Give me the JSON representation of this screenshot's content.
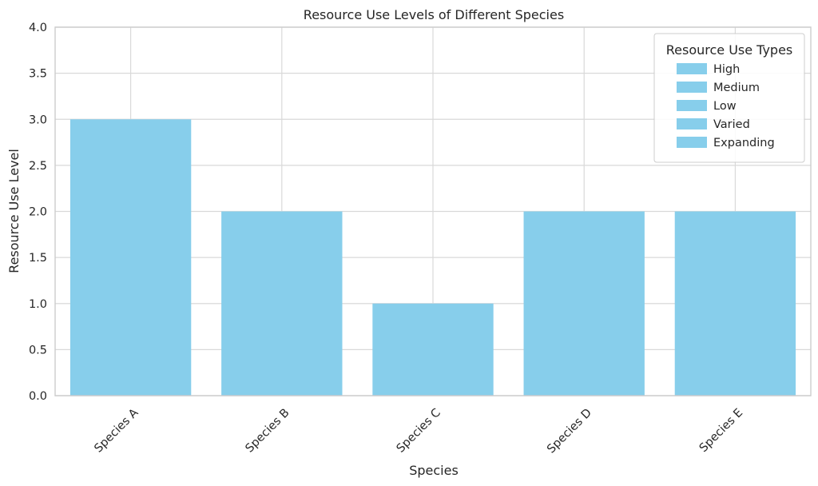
{
  "chart_data": {
    "type": "bar",
    "title": "Resource Use Levels of Different Species",
    "xlabel": "Species",
    "ylabel": "Resource Use Level",
    "categories": [
      "Species A",
      "Species B",
      "Species C",
      "Species D",
      "Species E"
    ],
    "values": [
      3,
      2,
      1,
      2,
      2
    ],
    "ylim": [
      0,
      4.0
    ],
    "yticks": [
      "0.0",
      "0.5",
      "1.0",
      "1.5",
      "2.0",
      "2.5",
      "3.0",
      "3.5",
      "4.0"
    ],
    "grid": true,
    "bar_color": "#87CEEB",
    "legend": {
      "title": "Resource Use Types",
      "placement": "top-right",
      "entries": [
        "High",
        "Medium",
        "Low",
        "Varied",
        "Expanding"
      ]
    }
  }
}
